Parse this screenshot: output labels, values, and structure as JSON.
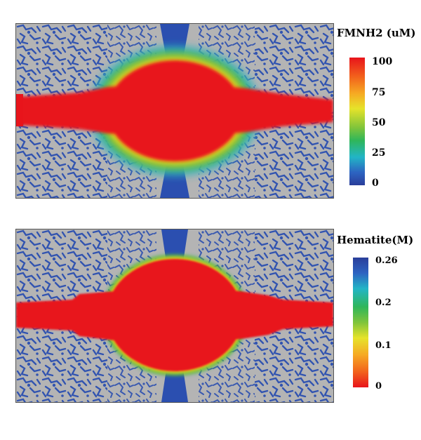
{
  "colorbars": {
    "fmnh2": {
      "title": "FMNH2 (uM)",
      "ticks": [
        "100",
        "75",
        "50",
        "25",
        "0"
      ],
      "high_color": "#e8141b",
      "low_color": "#2a3e9a"
    },
    "hematite": {
      "title": "Hematite(M)",
      "ticks": [
        "0.26",
        "0.2",
        "0.1",
        "0"
      ],
      "high_color": "#2a3e9a",
      "low_color": "#e8141b"
    }
  },
  "colors": {
    "grain": "#b4b4b4",
    "pore": "#2b4fb0",
    "plume": "#e8141b",
    "halo_yellow": "#f2d21c",
    "halo_green": "#3cb84a",
    "halo_cyan": "#2fb3c9"
  }
}
